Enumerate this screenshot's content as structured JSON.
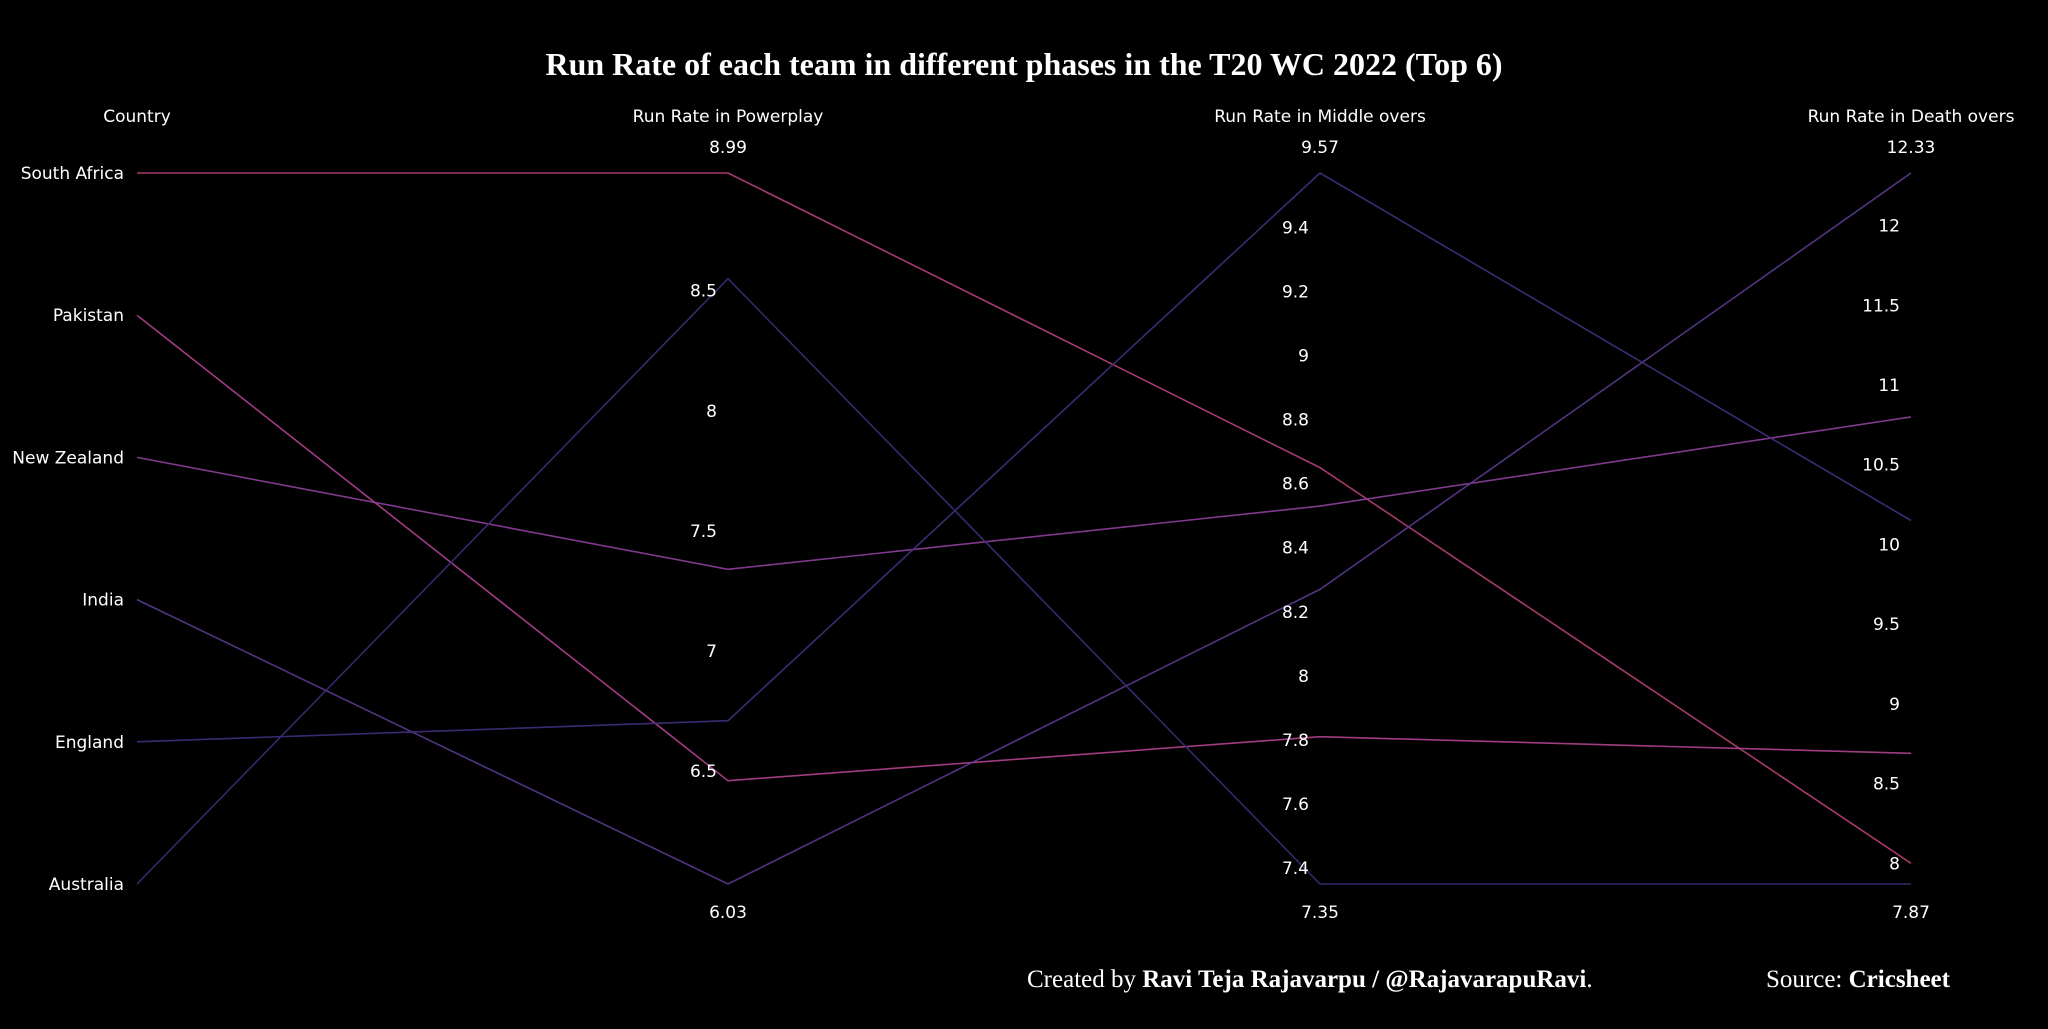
{
  "chart_data": {
    "type": "parallel-categories",
    "title": "Run Rate of each team in different phases in the T20 WC 2022 (Top 6)",
    "dimensions": [
      {
        "key": "country",
        "label": "Country",
        "categorical": true,
        "categories": [
          "South Africa",
          "Pakistan",
          "New Zealand",
          "India",
          "England",
          "Australia"
        ]
      },
      {
        "key": "powerplay",
        "label": "Run Rate in Powerplay",
        "range": [
          6.03,
          8.99
        ],
        "ticks": [
          {
            "v": 8.99,
            "t": "8.99"
          },
          {
            "v": 8.5,
            "t": "8.5"
          },
          {
            "v": 8,
            "t": "8"
          },
          {
            "v": 7.5,
            "t": "7.5"
          },
          {
            "v": 7,
            "t": "7"
          },
          {
            "v": 6.5,
            "t": "6.5"
          },
          {
            "v": 6.03,
            "t": "6.03"
          }
        ]
      },
      {
        "key": "middle",
        "label": "Run Rate in Middle overs",
        "range": [
          7.35,
          9.57
        ],
        "ticks": [
          {
            "v": 9.57,
            "t": "9.57"
          },
          {
            "v": 9.4,
            "t": "9.4"
          },
          {
            "v": 9.2,
            "t": "9.2"
          },
          {
            "v": 9,
            "t": "9"
          },
          {
            "v": 8.8,
            "t": "8.8"
          },
          {
            "v": 8.6,
            "t": "8.6"
          },
          {
            "v": 8.4,
            "t": "8.4"
          },
          {
            "v": 8.2,
            "t": "8.2"
          },
          {
            "v": 8,
            "t": "8"
          },
          {
            "v": 7.8,
            "t": "7.8"
          },
          {
            "v": 7.6,
            "t": "7.6"
          },
          {
            "v": 7.4,
            "t": "7.4"
          },
          {
            "v": 7.35,
            "t": "7.35"
          }
        ]
      },
      {
        "key": "death",
        "label": "Run Rate in Death overs",
        "range": [
          7.87,
          12.33
        ],
        "ticks": [
          {
            "v": 12.33,
            "t": "12.33"
          },
          {
            "v": 12,
            "t": "12"
          },
          {
            "v": 11.5,
            "t": "11.5"
          },
          {
            "v": 11,
            "t": "11"
          },
          {
            "v": 10.5,
            "t": "10.5"
          },
          {
            "v": 10,
            "t": "10"
          },
          {
            "v": 9.5,
            "t": "9.5"
          },
          {
            "v": 9,
            "t": "9"
          },
          {
            "v": 8.5,
            "t": "8.5"
          },
          {
            "v": 8,
            "t": "8"
          },
          {
            "v": 7.87,
            "t": "7.87"
          }
        ]
      }
    ],
    "series": [
      {
        "country": "South Africa",
        "powerplay": 8.99,
        "middle": 8.65,
        "death": 8.0,
        "color": "#b8407a"
      },
      {
        "country": "Pakistan",
        "powerplay": 6.46,
        "middle": 7.81,
        "death": 8.69,
        "color": "#b14290"
      },
      {
        "country": "New Zealand",
        "powerplay": 7.34,
        "middle": 8.53,
        "death": 10.8,
        "color": "#8f3f9c"
      },
      {
        "country": "India",
        "powerplay": 6.03,
        "middle": 8.27,
        "death": 12.33,
        "color": "#5b3a8e"
      },
      {
        "country": "England",
        "powerplay": 6.71,
        "middle": 9.57,
        "death": 10.15,
        "color": "#43307f"
      },
      {
        "country": "Australia",
        "powerplay": 8.55,
        "middle": 7.35,
        "death": 7.87,
        "color": "#3b2d7a"
      }
    ]
  },
  "footer": {
    "created_prefix": "Created by ",
    "author": "Ravi Teja Rajavarpu / @RajavarapuRavi",
    "period": ".",
    "source_prefix": "Source: ",
    "source": "Cricsheet"
  }
}
